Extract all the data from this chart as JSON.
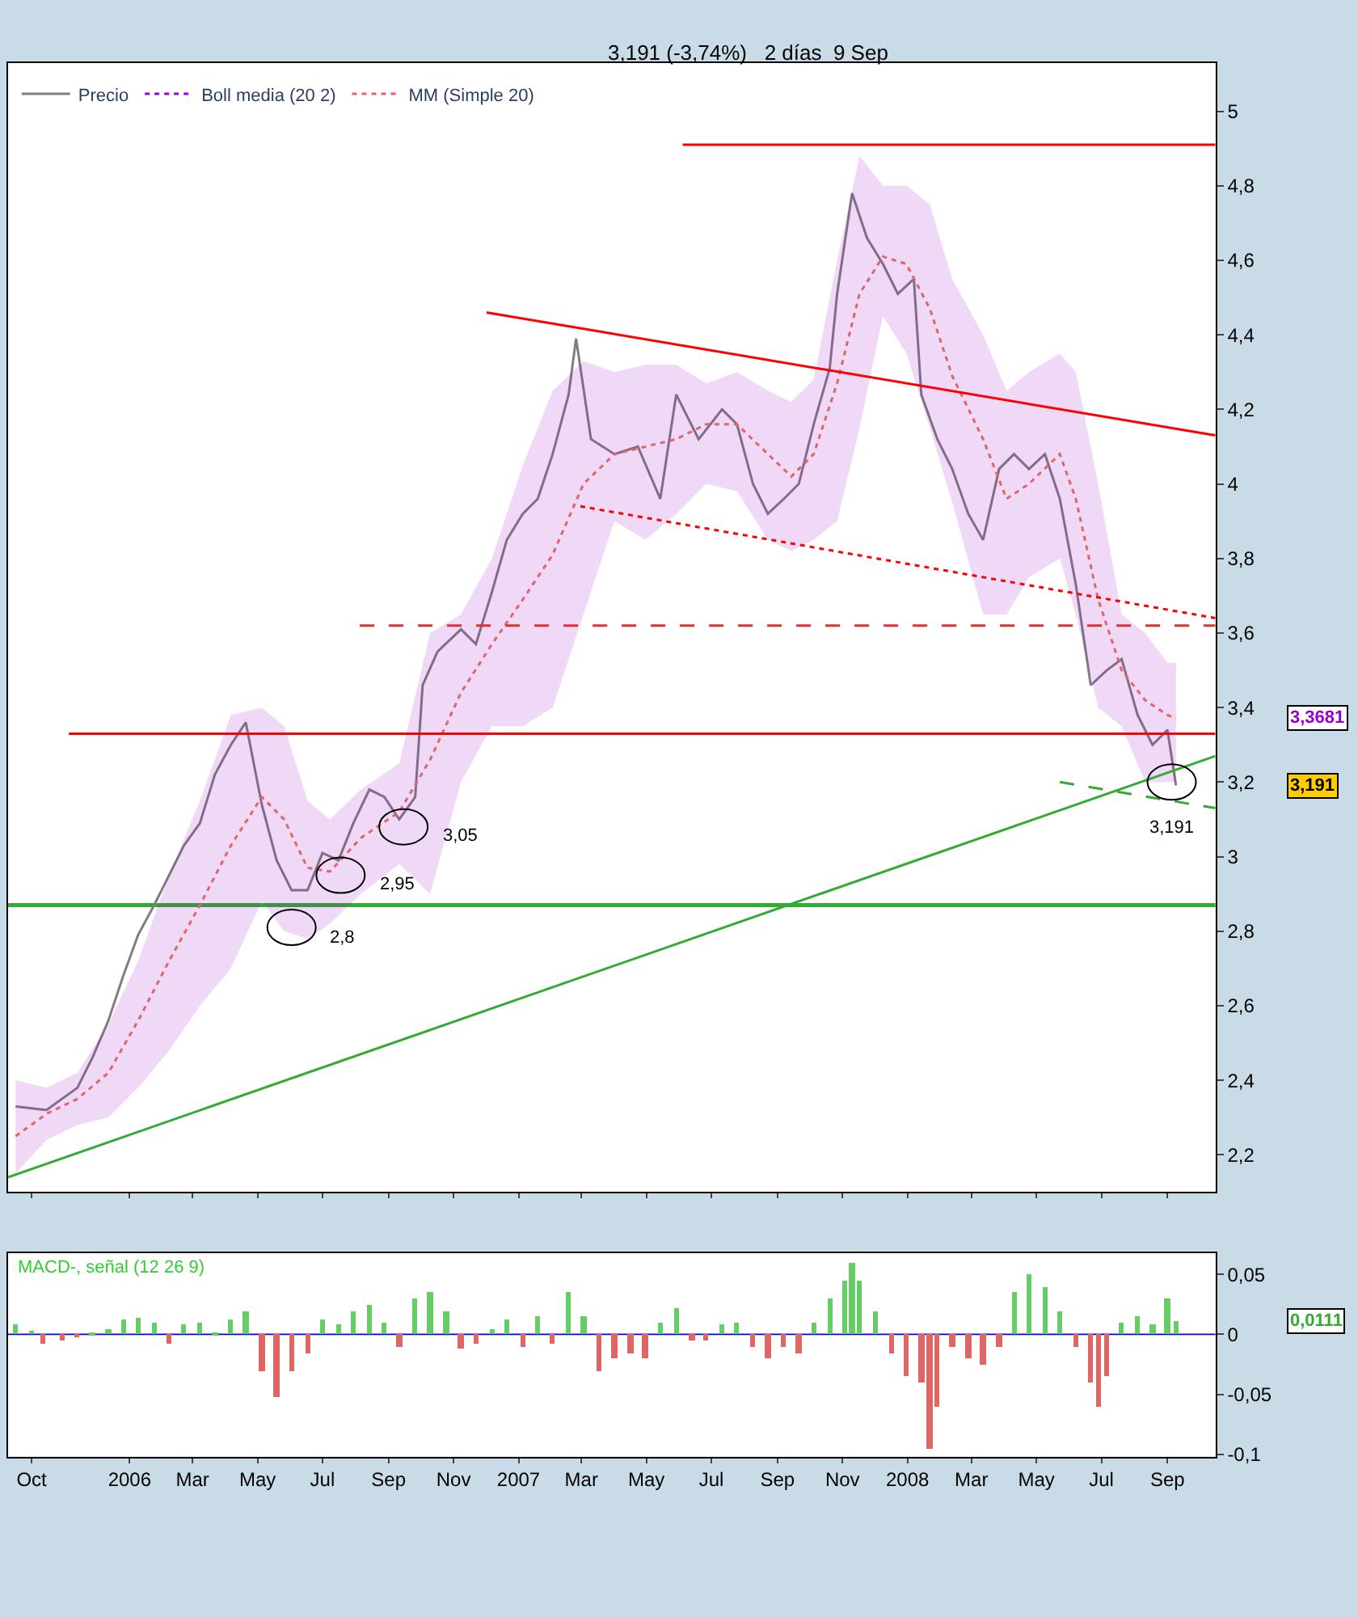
{
  "chart_data": [
    {
      "type": "line",
      "title": "3,191 (-3,74%)   2 días  9 Sep",
      "legend": "top left",
      "tick_labels": "y",
      "grid": false,
      "marker": "none",
      "xlim": [
        "2005-09-09",
        "2008-10-16"
      ],
      "xticks": [
        {
          "value": "2005-10-01",
          "label": null
        },
        {
          "value": "2006-01-01",
          "label": null
        },
        {
          "value": "2006-03-01",
          "label": null
        },
        {
          "value": "2006-05-01",
          "label": null
        },
        {
          "value": "2006-07-01",
          "label": null
        },
        {
          "value": "2006-09-01",
          "label": null
        },
        {
          "value": "2006-11-01",
          "label": null
        },
        {
          "value": "2007-01-01",
          "label": null
        },
        {
          "value": "2007-03-01",
          "label": null
        },
        {
          "value": "2007-05-01",
          "label": null
        },
        {
          "value": "2007-07-01",
          "label": null
        },
        {
          "value": "2007-09-01",
          "label": null
        },
        {
          "value": "2007-11-01",
          "label": null
        },
        {
          "value": "2008-01-01",
          "label": null
        },
        {
          "value": "2008-03-01",
          "label": null
        },
        {
          "value": "2008-05-01",
          "label": null
        },
        {
          "value": "2008-07-01",
          "label": null
        },
        {
          "value": "2008-09-01",
          "label": null
        }
      ],
      "ylim": [
        2.1,
        5.13
      ],
      "yticks": [
        {
          "value": 2.2,
          "label": "2,2"
        },
        {
          "value": 2.4,
          "label": "2,4"
        },
        {
          "value": 2.6,
          "label": "2,6"
        },
        {
          "value": 2.8,
          "label": "2,8"
        },
        3,
        {
          "value": 3.2,
          "label": "3,2"
        },
        {
          "value": 3.4,
          "label": "3,4"
        },
        {
          "value": 3.6,
          "label": "3,6"
        },
        {
          "value": 3.8,
          "label": "3,8"
        },
        4,
        {
          "value": 4.2,
          "label": "4,2"
        },
        {
          "value": 4.4,
          "label": "4,4"
        },
        {
          "value": 4.6,
          "label": "4,6"
        },
        {
          "value": 4.8,
          "label": "4,8"
        },
        5
      ],
      "series": [
        {
          "name": "Precio",
          "color": "#7f7f7f",
          "line_style": "solid",
          "x": [
            "2005-09-16",
            "2005-10-15",
            "2005-11-13",
            "2005-11-27",
            "2005-12-12",
            "2005-12-26",
            "2006-01-09",
            "2006-01-24",
            "2006-02-07",
            "2006-02-21",
            "2006-03-08",
            "2006-03-22",
            "2006-04-06",
            "2006-04-20",
            "2006-05-05",
            "2006-05-19",
            "2006-06-02",
            "2006-06-17",
            "2006-07-01",
            "2006-07-16",
            "2006-07-30",
            "2006-08-14",
            "2006-08-28",
            "2006-09-11",
            "2006-09-26",
            "2006-10-03",
            "2006-10-17",
            "2006-11-08",
            "2006-11-22",
            "2006-12-07",
            "2006-12-21",
            "2007-01-05",
            "2007-01-19",
            "2007-02-02",
            "2007-02-17",
            "2007-02-24",
            "2007-03-10",
            "2007-04-01",
            "2007-04-23",
            "2007-05-14",
            "2007-05-29",
            "2007-06-19",
            "2007-07-11",
            "2007-07-25",
            "2007-08-09",
            "2007-08-23",
            "2007-09-07",
            "2007-09-21",
            "2007-10-05",
            "2007-10-20",
            "2007-10-27",
            "2007-11-10",
            "2007-11-24",
            "2007-12-09",
            "2007-12-23",
            "2008-01-07",
            "2008-01-14",
            "2008-01-29",
            "2008-02-12",
            "2008-02-27",
            "2008-03-12",
            "2008-03-27",
            "2008-04-10",
            "2008-04-24",
            "2008-05-09",
            "2008-05-23",
            "2008-06-07",
            "2008-06-21",
            "2008-07-06",
            "2008-07-20",
            "2008-08-04",
            "2008-08-18",
            "2008-09-01",
            "2008-09-09"
          ],
          "values": [
            2.33,
            2.32,
            2.38,
            2.46,
            2.56,
            2.68,
            2.79,
            2.87,
            2.95,
            3.03,
            3.09,
            3.22,
            3.3,
            3.36,
            3.14,
            2.99,
            2.91,
            2.91,
            3.01,
            2.99,
            3.09,
            3.18,
            3.16,
            3.1,
            3.16,
            3.46,
            3.55,
            3.61,
            3.57,
            3.71,
            3.85,
            3.92,
            3.96,
            4.08,
            4.24,
            4.39,
            4.12,
            4.08,
            4.1,
            3.96,
            4.24,
            4.12,
            4.2,
            4.16,
            4.0,
            3.92,
            3.96,
            4.0,
            4.16,
            4.31,
            4.51,
            4.78,
            4.66,
            4.59,
            4.51,
            4.55,
            4.24,
            4.12,
            4.04,
            3.92,
            3.85,
            4.04,
            4.08,
            4.04,
            4.08,
            3.96,
            3.73,
            3.46,
            3.5,
            3.53,
            3.38,
            3.3,
            3.34,
            3.191
          ]
        },
        {
          "name": "Boll media (20 2)",
          "color": "#9900cc",
          "line_style": "dotted",
          "x": [
            "2005-09-16",
            "2005-10-15",
            "2005-11-13",
            "2005-12-12",
            "2006-01-09",
            "2006-02-07",
            "2006-03-08",
            "2006-04-06",
            "2006-05-05",
            "2006-05-26",
            "2006-06-17",
            "2006-07-08",
            "2006-08-06",
            "2006-09-11",
            "2006-10-10",
            "2006-11-08",
            "2006-12-07",
            "2007-01-05",
            "2007-02-02",
            "2007-03-03",
            "2007-04-01",
            "2007-04-30",
            "2007-05-29",
            "2007-06-26",
            "2007-07-25",
            "2007-08-23",
            "2007-09-14",
            "2007-10-05",
            "2007-10-27",
            "2007-11-17",
            "2007-12-09",
            "2007-12-31",
            "2008-01-22",
            "2008-02-12",
            "2008-03-12",
            "2008-04-03",
            "2008-04-24",
            "2008-05-23",
            "2008-06-07",
            "2008-06-28",
            "2008-07-20",
            "2008-08-11",
            "2008-09-01",
            "2008-09-09"
          ],
          "values": [
            null,
            null,
            null,
            null,
            null,
            null,
            null,
            null,
            null,
            null,
            null,
            null,
            null,
            null,
            null,
            null,
            null,
            null,
            null,
            null,
            null,
            null,
            null,
            null,
            null,
            null,
            null,
            null,
            null,
            null,
            null,
            null,
            null,
            null,
            null,
            null,
            null,
            null,
            null,
            null,
            null,
            null,
            null,
            null
          ],
          "lower": [
            2.15,
            2.24,
            2.28,
            2.3,
            2.38,
            2.48,
            2.6,
            2.7,
            2.88,
            2.8,
            2.78,
            2.82,
            2.9,
            2.98,
            2.9,
            3.2,
            3.35,
            3.35,
            3.4,
            3.65,
            3.9,
            3.85,
            3.92,
            4.0,
            3.98,
            3.85,
            3.82,
            3.85,
            3.9,
            4.15,
            4.45,
            4.35,
            4.15,
            3.95,
            3.65,
            3.65,
            3.75,
            3.8,
            3.65,
            3.4,
            3.35,
            3.2,
            3.2,
            3.2
          ],
          "upper": [
            2.4,
            2.38,
            2.42,
            2.55,
            2.72,
            2.95,
            3.15,
            3.38,
            3.4,
            3.35,
            3.15,
            3.1,
            3.18,
            3.25,
            3.6,
            3.65,
            3.8,
            4.05,
            4.25,
            4.33,
            4.3,
            4.32,
            4.32,
            4.27,
            4.3,
            4.25,
            4.22,
            4.28,
            4.6,
            4.88,
            4.8,
            4.8,
            4.75,
            4.55,
            4.4,
            4.25,
            4.3,
            4.35,
            4.3,
            4.0,
            3.65,
            3.6,
            3.52,
            3.52
          ]
        },
        {
          "name": "MM (Simple 20)",
          "color": "#e06666",
          "line_style": "dotted",
          "x": [
            "2005-09-16",
            "2005-10-15",
            "2005-11-13",
            "2005-12-12",
            "2006-01-09",
            "2006-02-07",
            "2006-03-08",
            "2006-04-06",
            "2006-05-05",
            "2006-05-26",
            "2006-06-17",
            "2006-07-08",
            "2006-08-06",
            "2006-09-11",
            "2006-10-10",
            "2006-11-08",
            "2006-12-07",
            "2007-01-05",
            "2007-02-02",
            "2007-03-03",
            "2007-04-01",
            "2007-04-30",
            "2007-05-29",
            "2007-06-26",
            "2007-07-25",
            "2007-08-23",
            "2007-09-14",
            "2007-10-05",
            "2007-10-27",
            "2007-11-17",
            "2007-12-09",
            "2007-12-31",
            "2008-01-22",
            "2008-02-12",
            "2008-03-12",
            "2008-04-03",
            "2008-04-24",
            "2008-05-23",
            "2008-06-07",
            "2008-06-28",
            "2008-07-20",
            "2008-08-11",
            "2008-09-01",
            "2008-09-09"
          ],
          "values": [
            2.25,
            2.31,
            2.35,
            2.42,
            2.56,
            2.72,
            2.87,
            3.03,
            3.16,
            3.1,
            2.97,
            2.96,
            3.05,
            3.12,
            3.26,
            3.44,
            3.57,
            3.69,
            3.81,
            4.0,
            4.08,
            4.1,
            4.12,
            4.16,
            4.16,
            4.08,
            4.02,
            4.08,
            4.27,
            4.51,
            4.61,
            4.59,
            4.47,
            4.29,
            4.12,
            3.96,
            4.0,
            4.08,
            3.96,
            3.69,
            3.5,
            3.42,
            3.38,
            3.37
          ]
        },
        {
          "color": "#ff0000",
          "line_style": "solid",
          "x": [
            "2007-06-04",
            "2008-10-16"
          ],
          "values": [
            4.91,
            4.91
          ]
        },
        {
          "color": "#ff0000",
          "line_style": "solid",
          "x": [
            "2005-11-05",
            "2008-10-16"
          ],
          "values": [
            3.33,
            3.33
          ]
        },
        {
          "color": "#e03030",
          "line_style": "dashed",
          "x": [
            "2006-08-05",
            "2008-10-16"
          ],
          "values": [
            3.62,
            3.62
          ]
        },
        {
          "color": "#ff0000",
          "line_style": "solid",
          "x": [
            "2006-12-02",
            "2008-10-16"
          ],
          "values": [
            4.46,
            4.13
          ]
        },
        {
          "color": "#ff0000",
          "line_style": "dotted",
          "x": [
            "2007-02-28",
            "2008-10-16"
          ],
          "values": [
            3.94,
            3.64
          ]
        },
        {
          "color": "#33aa33",
          "line_style": "solid",
          "x": [
            "2005-09-09",
            "2008-10-16"
          ],
          "values": [
            2.14,
            3.27
          ]
        },
        {
          "color": "#33aa33",
          "line_style": "dashed",
          "x": [
            "2008-05-23",
            "2008-10-16"
          ],
          "values": [
            3.2,
            3.13
          ]
        }
      ],
      "ref_lines": [
        {
          "axis": "y",
          "value": 2.87,
          "color": "#33aa33",
          "line_style": "solid"
        }
      ],
      "annotations": [
        {
          "text": "2,8",
          "x": "2006-06-02",
          "y": 2.81
        },
        {
          "text": "2,95",
          "x": "2006-07-18",
          "y": 2.95
        },
        {
          "text": "3,05",
          "x": "2006-09-15",
          "y": 3.08
        },
        {
          "text": "3,191",
          "x": "2008-09-05",
          "y": 3.2
        },
        "3,3681",
        "3,191"
      ]
    },
    {
      "type": "bar",
      "title": "MACD-, señal (12 26 9)",
      "grid": false,
      "xlim": [
        "2005-09-09",
        "2008-10-16"
      ],
      "xticks": [
        {
          "value": "2005-10-01",
          "label": "Oct"
        },
        {
          "value": "2006-01-01",
          "label": "2006"
        },
        {
          "value": "2006-03-01",
          "label": "Mar"
        },
        {
          "value": "2006-05-01",
          "label": "May"
        },
        {
          "value": "2006-07-01",
          "label": "Jul"
        },
        {
          "value": "2006-09-01",
          "label": "Sep"
        },
        {
          "value": "2006-11-01",
          "label": "Nov"
        },
        {
          "value": "2007-01-01",
          "label": "2007"
        },
        {
          "value": "2007-03-01",
          "label": "Mar"
        },
        {
          "value": "2007-05-01",
          "label": "May"
        },
        {
          "value": "2007-07-01",
          "label": "Jul"
        },
        {
          "value": "2007-09-01",
          "label": "Sep"
        },
        {
          "value": "2007-11-01",
          "label": "Nov"
        },
        {
          "value": "2008-01-01",
          "label": "2008"
        },
        {
          "value": "2008-03-01",
          "label": "Mar"
        },
        {
          "value": "2008-05-01",
          "label": "May"
        },
        {
          "value": "2008-07-01",
          "label": "Jul"
        },
        {
          "value": "2008-09-01",
          "label": "Sep"
        }
      ],
      "ylim": [
        -0.102,
        0.068
      ],
      "yticks": [
        {
          "value": -0.1,
          "label": "-0,1"
        },
        {
          "value": -0.05,
          "label": "-0,05"
        },
        0,
        {
          "value": 0.05,
          "label": "0,05"
        }
      ],
      "x": [
        "2005-09-16",
        "2005-10-01",
        "2005-10-12",
        "2005-10-30",
        "2005-11-13",
        "2005-11-27",
        "2005-12-12",
        "2005-12-26",
        "2006-01-09",
        "2006-01-24",
        "2006-02-07",
        "2006-02-21",
        "2006-03-08",
        "2006-03-22",
        "2006-04-06",
        "2006-04-20",
        "2006-05-05",
        "2006-05-19",
        "2006-06-02",
        "2006-06-17",
        "2006-07-01",
        "2006-07-16",
        "2006-07-30",
        "2006-08-14",
        "2006-08-28",
        "2006-09-11",
        "2006-09-26",
        "2006-10-10",
        "2006-10-25",
        "2006-11-08",
        "2006-11-22",
        "2006-12-07",
        "2006-12-21",
        "2007-01-05",
        "2007-01-19",
        "2007-02-02",
        "2007-02-17",
        "2007-03-03",
        "2007-03-18",
        "2007-04-01",
        "2007-04-16",
        "2007-04-30",
        "2007-05-14",
        "2007-05-29",
        "2007-06-13",
        "2007-06-26",
        "2007-07-11",
        "2007-07-25",
        "2007-08-09",
        "2007-08-23",
        "2007-09-07",
        "2007-09-21",
        "2007-10-05",
        "2007-10-20",
        "2007-11-03",
        "2007-11-10",
        "2007-11-17",
        "2007-12-02",
        "2007-12-17",
        "2007-12-31",
        "2008-01-14",
        "2008-01-22",
        "2008-01-29",
        "2008-02-12",
        "2008-02-27",
        "2008-03-12",
        "2008-03-27",
        "2008-04-10",
        "2008-04-24",
        "2008-05-09",
        "2008-05-23",
        "2008-06-07",
        "2008-06-21",
        "2008-06-28",
        "2008-07-06",
        "2008-07-20",
        "2008-08-04",
        "2008-08-18",
        "2008-09-01",
        "2008-09-09"
      ],
      "values": [
        0.008,
        0.003,
        -0.008,
        -0.005,
        -0.002,
        0.002,
        0.004,
        0.013,
        0.014,
        0.01,
        -0.008,
        0.008,
        0.01,
        0.001,
        0.012,
        0.02,
        -0.03,
        -0.052,
        -0.03,
        -0.015,
        0.012,
        0.008,
        0.02,
        0.025,
        0.01,
        -0.01,
        0.03,
        0.035,
        0.02,
        -0.012,
        -0.008,
        0.005,
        0.012,
        -0.01,
        0.015,
        -0.008,
        0.035,
        0.015,
        -0.03,
        -0.02,
        -0.015,
        -0.02,
        0.01,
        0.022,
        -0.005,
        -0.005,
        0.008,
        0.01,
        -0.01,
        -0.02,
        -0.01,
        -0.015,
        0.01,
        0.03,
        0.045,
        0.06,
        0.045,
        0.02,
        -0.015,
        -0.035,
        -0.04,
        -0.095,
        -0.06,
        -0.01,
        -0.02,
        -0.025,
        -0.01,
        0.035,
        0.05,
        0.04,
        0.02,
        -0.01,
        -0.04,
        -0.06,
        -0.035,
        0.01,
        0.015,
        0.008,
        0.03,
        0.011
      ],
      "colors": [
        "#66cc66",
        "#66cc66",
        "#e06666",
        "#e06666",
        "#e06666",
        "#66cc66",
        "#66cc66",
        "#66cc66",
        "#66cc66",
        "#66cc66",
        "#e06666",
        "#66cc66",
        "#66cc66",
        "#66cc66",
        "#66cc66",
        "#66cc66",
        "#e06666",
        "#e06666",
        "#e06666",
        "#e06666",
        "#66cc66",
        "#66cc66",
        "#66cc66",
        "#66cc66",
        "#66cc66",
        "#e06666",
        "#66cc66",
        "#66cc66",
        "#66cc66",
        "#e06666",
        "#e06666",
        "#66cc66",
        "#66cc66",
        "#e06666",
        "#66cc66",
        "#e06666",
        "#66cc66",
        "#66cc66",
        "#e06666",
        "#e06666",
        "#e06666",
        "#e06666",
        "#66cc66",
        "#66cc66",
        "#e06666",
        "#e06666",
        "#66cc66",
        "#66cc66",
        "#e06666",
        "#e06666",
        "#e06666",
        "#e06666",
        "#66cc66",
        "#66cc66",
        "#66cc66",
        "#66cc66",
        "#66cc66",
        "#66cc66",
        "#e06666",
        "#e06666",
        "#e06666",
        "#e06666",
        "#e06666",
        "#e06666",
        "#e06666",
        "#e06666",
        "#e06666",
        "#66cc66",
        "#66cc66",
        "#66cc66",
        "#66cc66",
        "#e06666",
        "#e06666",
        "#e06666",
        "#e06666",
        "#66cc66",
        "#66cc66",
        "#66cc66",
        "#66cc66",
        "#66cc66"
      ],
      "ref_lines": [
        {
          "axis": "y",
          "value": 0,
          "color": "#0000ff",
          "line_style": "solid"
        }
      ],
      "annotations": [
        "0,0111"
      ]
    }
  ]
}
